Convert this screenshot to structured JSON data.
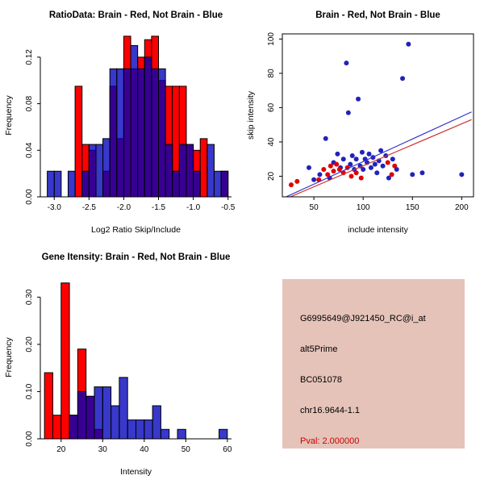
{
  "window": {
    "background": "#FFFFFF"
  },
  "colors": {
    "hist_red": "#FF0000",
    "hist_blue": "#0000BB",
    "point_red": "#E00000",
    "point_blue": "#2222BB",
    "line_red": "#CC3333",
    "line_blue": "#3333CC",
    "axis": "#000000",
    "info_box_bg": "#E5C3B9",
    "pval_red": "#CC0000"
  },
  "chart_data": [
    {
      "id": "ratio-histogram",
      "type": "bar",
      "title": "RatioData: Brain - Red, Not Brain - Blue",
      "xlabel": "Log2 Ratio Skip/Include",
      "ylabel": "Frequency",
      "xlim": [
        -3.2,
        -0.45
      ],
      "ylim": [
        0,
        0.14
      ],
      "bin_width": 0.1,
      "xticks": [
        {
          "v": -3.0,
          "label": "-3.0"
        },
        {
          "v": -2.5,
          "label": "-2.5"
        },
        {
          "v": -2.0,
          "label": "-2.0"
        },
        {
          "v": -1.5,
          "label": "-1.5"
        },
        {
          "v": -1.0,
          "label": "-1.0"
        },
        {
          "v": -0.5,
          "label": "-0.5"
        }
      ],
      "yticks": [
        {
          "v": 0,
          "label": "0.00"
        },
        {
          "v": 0.04,
          "label": "0.04"
        },
        {
          "v": 0.08,
          "label": "0.08"
        },
        {
          "v": 0.12,
          "label": "0.12"
        }
      ],
      "series": [
        {
          "name": "Brain",
          "color": "#FF0000",
          "opacity": 1
        },
        {
          "name": "Not Brain",
          "color": "#0000BB",
          "opacity": 0.78
        }
      ],
      "bins": [
        [
          -3.1,
          0,
          0.022
        ],
        [
          -3.0,
          0,
          0.022
        ],
        [
          -2.8,
          0,
          0.022
        ],
        [
          -2.7,
          0.095,
          0
        ],
        [
          -2.6,
          0.045,
          0.022
        ],
        [
          -2.5,
          0.04,
          0.045
        ],
        [
          -2.4,
          0,
          0.045
        ],
        [
          -2.3,
          0.022,
          0.05
        ],
        [
          -2.2,
          0.095,
          0.11
        ],
        [
          -2.1,
          0.05,
          0.11
        ],
        [
          -2.0,
          0.138,
          0.11
        ],
        [
          -1.9,
          0.11,
          0.13
        ],
        [
          -1.8,
          0.12,
          0.11
        ],
        [
          -1.7,
          0.135,
          0.12
        ],
        [
          -1.6,
          0.138,
          0.11
        ],
        [
          -1.5,
          0.1,
          0.11
        ],
        [
          -1.4,
          0.095,
          0.045
        ],
        [
          -1.3,
          0.095,
          0.022
        ],
        [
          -1.2,
          0.095,
          0.045
        ],
        [
          -1.1,
          0.045,
          0.045
        ],
        [
          -1.0,
          0.04,
          0.022
        ],
        [
          -0.9,
          0.05,
          0
        ],
        [
          -0.8,
          0,
          0.045
        ],
        [
          -0.7,
          0,
          0.022
        ],
        [
          -0.6,
          0.022,
          0.022
        ]
      ]
    },
    {
      "id": "intensity-scatter",
      "type": "scatter",
      "title": "Brain - Red, Not Brain - Blue",
      "xlabel": "include intensity",
      "ylabel": "skip intensity",
      "xlim": [
        18,
        212
      ],
      "ylim": [
        8,
        103
      ],
      "xticks": [
        {
          "v": 50,
          "label": "50"
        },
        {
          "v": 100,
          "label": "100"
        },
        {
          "v": 150,
          "label": "150"
        },
        {
          "v": 200,
          "label": "200"
        }
      ],
      "yticks": [
        {
          "v": 20,
          "label": "20"
        },
        {
          "v": 40,
          "label": "40"
        },
        {
          "v": 60,
          "label": "60"
        },
        {
          "v": 80,
          "label": "80"
        },
        {
          "v": 100,
          "label": "100"
        }
      ],
      "series": [
        {
          "name": "Not Brain",
          "color": "#2222BB",
          "points": [
            [
              45,
              25
            ],
            [
              50,
              18
            ],
            [
              56,
              21
            ],
            [
              62,
              42
            ],
            [
              66,
              19
            ],
            [
              70,
              28
            ],
            [
              74,
              33
            ],
            [
              77,
              25
            ],
            [
              80,
              30
            ],
            [
              83,
              86
            ],
            [
              85,
              57
            ],
            [
              87,
              27
            ],
            [
              89,
              32
            ],
            [
              91,
              24
            ],
            [
              93,
              30
            ],
            [
              95,
              65
            ],
            [
              97,
              26
            ],
            [
              99,
              34
            ],
            [
              100,
              24
            ],
            [
              102,
              30
            ],
            [
              104,
              28
            ],
            [
              106,
              33
            ],
            [
              108,
              25
            ],
            [
              110,
              31
            ],
            [
              112,
              27
            ],
            [
              114,
              22
            ],
            [
              116,
              29
            ],
            [
              118,
              35
            ],
            [
              120,
              26
            ],
            [
              123,
              32
            ],
            [
              126,
              19
            ],
            [
              130,
              30
            ],
            [
              134,
              24
            ],
            [
              140,
              77
            ],
            [
              146,
              97
            ],
            [
              150,
              21
            ],
            [
              160,
              22
            ],
            [
              200,
              21
            ]
          ]
        },
        {
          "name": "Brain",
          "color": "#E00000",
          "points": [
            [
              27,
              15
            ],
            [
              33,
              17
            ],
            [
              55,
              18
            ],
            [
              60,
              24
            ],
            [
              64,
              21
            ],
            [
              67,
              26
            ],
            [
              70,
              23
            ],
            [
              73,
              27
            ],
            [
              76,
              24
            ],
            [
              80,
              22
            ],
            [
              84,
              25
            ],
            [
              88,
              20
            ],
            [
              93,
              22
            ],
            [
              98,
              19
            ],
            [
              125,
              28
            ],
            [
              129,
              21
            ],
            [
              132,
              26
            ]
          ]
        }
      ],
      "lines": [
        {
          "name": "not-brain-fit",
          "color": "#3333CC",
          "x1": 20,
          "y1": 7.5,
          "x2": 210,
          "y2": 57.5
        },
        {
          "name": "brain-fit",
          "color": "#CC3333",
          "x1": 20,
          "y1": 6.5,
          "x2": 210,
          "y2": 53
        }
      ]
    },
    {
      "id": "gene-histogram",
      "type": "bar",
      "title": "Gene Itensity: Brain - Red, Not Brain - Blue",
      "xlabel": "Intensity",
      "ylabel": "Frequency",
      "xlim": [
        15,
        61
      ],
      "ylim": [
        0,
        0.345
      ],
      "bin_width": 2,
      "xticks": [
        {
          "v": 20,
          "label": "20"
        },
        {
          "v": 30,
          "label": "30"
        },
        {
          "v": 40,
          "label": "40"
        },
        {
          "v": 50,
          "label": "50"
        },
        {
          "v": 60,
          "label": "60"
        }
      ],
      "yticks": [
        {
          "v": 0,
          "label": "0.00"
        },
        {
          "v": 0.1,
          "label": "0.10"
        },
        {
          "v": 0.2,
          "label": "0.20"
        },
        {
          "v": 0.3,
          "label": "0.30"
        }
      ],
      "series": [
        {
          "name": "Brain",
          "color": "#FF0000",
          "opacity": 1
        },
        {
          "name": "Not Brain",
          "color": "#0000BB",
          "opacity": 0.78
        }
      ],
      "bins": [
        [
          16,
          0.14,
          0
        ],
        [
          18,
          0.05,
          0
        ],
        [
          20,
          0.33,
          0
        ],
        [
          22,
          0.05,
          0.05
        ],
        [
          24,
          0.19,
          0.1
        ],
        [
          26,
          0.09,
          0.09
        ],
        [
          28,
          0.02,
          0.11
        ],
        [
          30,
          0,
          0.11
        ],
        [
          32,
          0,
          0.07
        ],
        [
          34,
          0,
          0.13
        ],
        [
          36,
          0,
          0.04
        ],
        [
          38,
          0,
          0.04
        ],
        [
          40,
          0,
          0.04
        ],
        [
          42,
          0,
          0.07
        ],
        [
          44,
          0,
          0.02
        ],
        [
          48,
          0,
          0.02
        ],
        [
          58,
          0,
          0.02
        ]
      ]
    }
  ],
  "info_box": {
    "bg": "#E5C3B9",
    "lines": [
      {
        "text": "G6995649@J921450_RC@i_at",
        "color": "#000000"
      },
      {
        "text": "alt5Prime",
        "color": "#000000"
      },
      {
        "text": "BC051078",
        "color": "#000000"
      },
      {
        "text": "chr16.9644-1.1",
        "color": "#000000"
      },
      {
        "text": "Pval: 2.000000",
        "color": "#CC0000"
      }
    ]
  }
}
